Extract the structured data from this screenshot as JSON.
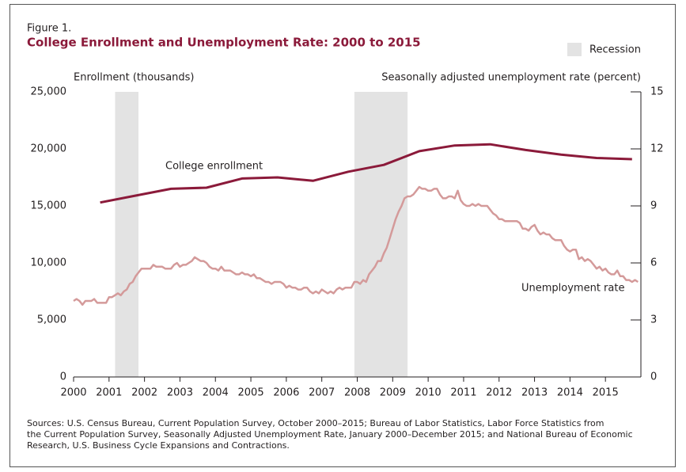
{
  "chart_data": {
    "type": "line",
    "figure_label": "Figure 1.",
    "title": "College Enrollment and Unemployment Rate: 2000 to 2015",
    "y_label": "Enrollment (thousands)",
    "y2_label": "Seasonally adjusted unemployment rate (percent)",
    "recession_label": "Recession",
    "recession_color": "#e3e3e3",
    "recessions": [
      [
        2001.17,
        2001.83
      ],
      [
        2007.92,
        2009.42
      ]
    ],
    "xlim": [
      2000,
      2016
    ],
    "xticks": [
      2000,
      2001,
      2002,
      2003,
      2004,
      2005,
      2006,
      2007,
      2008,
      2009,
      2010,
      2011,
      2012,
      2013,
      2014,
      2015
    ],
    "ylim": [
      0,
      25000
    ],
    "yticks": [
      0,
      {
        "value": 5000,
        "label": "5,000"
      },
      {
        "value": 10000,
        "label": "10,000"
      },
      {
        "value": 15000,
        "label": "15,000"
      },
      {
        "value": 20000,
        "label": "20,000"
      },
      {
        "value": 25000,
        "label": "25,000"
      }
    ],
    "y2lim": [
      0,
      15
    ],
    "y2ticks": [
      0,
      3,
      6,
      9,
      12,
      15
    ],
    "series": [
      {
        "name": "College enrollment",
        "color": "#8b1a3a",
        "x": [
          2000.75,
          2001.75,
          2002.75,
          2003.75,
          2004.75,
          2005.75,
          2006.75,
          2007.75,
          2008.75,
          2009.75,
          2010.75,
          2011.75,
          2012.75,
          2013.75,
          2014.75,
          2015.75
        ],
        "values": [
          15300,
          15900,
          16500,
          16600,
          17400,
          17500,
          17200,
          18000,
          18600,
          19800,
          20300,
          20400,
          19900,
          19500,
          19200,
          19100
        ]
      },
      {
        "name": "Unemployment rate",
        "color": "#d49a9a",
        "axis": "y2",
        "x": [
          2000,
          2000.083,
          2000.167,
          2000.25,
          2000.333,
          2000.417,
          2000.5,
          2000.583,
          2000.667,
          2000.75,
          2000.833,
          2000.917,
          2001,
          2001.083,
          2001.167,
          2001.25,
          2001.333,
          2001.417,
          2001.5,
          2001.583,
          2001.667,
          2001.75,
          2001.833,
          2001.917,
          2002,
          2002.083,
          2002.167,
          2002.25,
          2002.333,
          2002.417,
          2002.5,
          2002.583,
          2002.667,
          2002.75,
          2002.833,
          2002.917,
          2003,
          2003.083,
          2003.167,
          2003.25,
          2003.333,
          2003.417,
          2003.5,
          2003.583,
          2003.667,
          2003.75,
          2003.833,
          2003.917,
          2004,
          2004.083,
          2004.167,
          2004.25,
          2004.333,
          2004.417,
          2004.5,
          2004.583,
          2004.667,
          2004.75,
          2004.833,
          2004.917,
          2005,
          2005.083,
          2005.167,
          2005.25,
          2005.333,
          2005.417,
          2005.5,
          2005.583,
          2005.667,
          2005.75,
          2005.833,
          2005.917,
          2006,
          2006.083,
          2006.167,
          2006.25,
          2006.333,
          2006.417,
          2006.5,
          2006.583,
          2006.667,
          2006.75,
          2006.833,
          2006.917,
          2007,
          2007.083,
          2007.167,
          2007.25,
          2007.333,
          2007.417,
          2007.5,
          2007.583,
          2007.667,
          2007.75,
          2007.833,
          2007.917,
          2008,
          2008.083,
          2008.167,
          2008.25,
          2008.333,
          2008.417,
          2008.5,
          2008.583,
          2008.667,
          2008.75,
          2008.833,
          2008.917,
          2009,
          2009.083,
          2009.167,
          2009.25,
          2009.333,
          2009.417,
          2009.5,
          2009.583,
          2009.667,
          2009.75,
          2009.833,
          2009.917,
          2010,
          2010.083,
          2010.167,
          2010.25,
          2010.333,
          2010.417,
          2010.5,
          2010.583,
          2010.667,
          2010.75,
          2010.833,
          2010.917,
          2011,
          2011.083,
          2011.167,
          2011.25,
          2011.333,
          2011.417,
          2011.5,
          2011.583,
          2011.667,
          2011.75,
          2011.833,
          2011.917,
          2012,
          2012.083,
          2012.167,
          2012.25,
          2012.333,
          2012.417,
          2012.5,
          2012.583,
          2012.667,
          2012.75,
          2012.833,
          2012.917,
          2013,
          2013.083,
          2013.167,
          2013.25,
          2013.333,
          2013.417,
          2013.5,
          2013.583,
          2013.667,
          2013.75,
          2013.833,
          2013.917,
          2014,
          2014.083,
          2014.167,
          2014.25,
          2014.333,
          2014.417,
          2014.5,
          2014.583,
          2014.667,
          2014.75,
          2014.833,
          2014.917,
          2015,
          2015.083,
          2015.167,
          2015.25,
          2015.333,
          2015.417,
          2015.5,
          2015.583,
          2015.667,
          2015.75,
          2015.833,
          2015.917
        ],
        "values": [
          4.0,
          4.1,
          4.0,
          3.8,
          4.0,
          4.0,
          4.0,
          4.1,
          3.9,
          3.9,
          3.9,
          3.9,
          4.2,
          4.2,
          4.3,
          4.4,
          4.3,
          4.5,
          4.6,
          4.9,
          5.0,
          5.3,
          5.5,
          5.7,
          5.7,
          5.7,
          5.7,
          5.9,
          5.8,
          5.8,
          5.8,
          5.7,
          5.7,
          5.7,
          5.9,
          6.0,
          5.8,
          5.9,
          5.9,
          6.0,
          6.1,
          6.3,
          6.2,
          6.1,
          6.1,
          6.0,
          5.8,
          5.7,
          5.7,
          5.6,
          5.8,
          5.6,
          5.6,
          5.6,
          5.5,
          5.4,
          5.4,
          5.5,
          5.4,
          5.4,
          5.3,
          5.4,
          5.2,
          5.2,
          5.1,
          5.0,
          5.0,
          4.9,
          5.0,
          5.0,
          5.0,
          4.9,
          4.7,
          4.8,
          4.7,
          4.7,
          4.6,
          4.6,
          4.7,
          4.7,
          4.5,
          4.4,
          4.5,
          4.4,
          4.6,
          4.5,
          4.4,
          4.5,
          4.4,
          4.6,
          4.7,
          4.6,
          4.7,
          4.7,
          4.7,
          5.0,
          5.0,
          4.9,
          5.1,
          5.0,
          5.4,
          5.6,
          5.8,
          6.1,
          6.1,
          6.5,
          6.8,
          7.3,
          7.8,
          8.3,
          8.7,
          9.0,
          9.4,
          9.5,
          9.5,
          9.6,
          9.8,
          10.0,
          9.9,
          9.9,
          9.8,
          9.8,
          9.9,
          9.9,
          9.6,
          9.4,
          9.4,
          9.5,
          9.5,
          9.4,
          9.8,
          9.3,
          9.1,
          9.0,
          9.0,
          9.1,
          9.0,
          9.1,
          9.0,
          9.0,
          9.0,
          8.8,
          8.6,
          8.5,
          8.3,
          8.3,
          8.2,
          8.2,
          8.2,
          8.2,
          8.2,
          8.1,
          7.8,
          7.8,
          7.7,
          7.9,
          8.0,
          7.7,
          7.5,
          7.6,
          7.5,
          7.5,
          7.3,
          7.2,
          7.2,
          7.2,
          6.9,
          6.7,
          6.6,
          6.7,
          6.7,
          6.2,
          6.3,
          6.1,
          6.2,
          6.1,
          5.9,
          5.7,
          5.8,
          5.6,
          5.7,
          5.5,
          5.4,
          5.4,
          5.6,
          5.3,
          5.3,
          5.1,
          5.1,
          5.0,
          5.1,
          5.0
        ]
      }
    ],
    "source": [
      "Sources: U.S. Census Bureau, Current Population Survey, October 2000–2015; Bureau of Labor Statistics, Labor Force Statistics from",
      "the Current Population Survey, Seasonally Adjusted Unemployment Rate, January 2000–December 2015; and National Bureau of Economic",
      "Research, U.S. Business Cycle Expansions and Contractions."
    ]
  }
}
